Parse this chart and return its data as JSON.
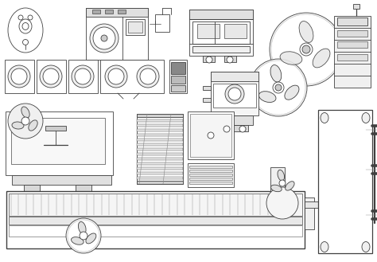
{
  "bg": "white",
  "lc": "#404040",
  "lw": 0.6
}
